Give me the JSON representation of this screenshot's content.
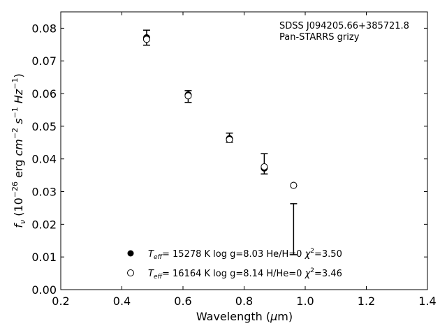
{
  "chart_data": {
    "type": "scatter",
    "title": "",
    "xlabel": "Wavelength (μm)",
    "ylabel": "f_ν (10^-26 erg cm^-2 s^-1 Hz^-1)",
    "xlim": [
      0.2,
      1.4
    ],
    "ylim": [
      0.0,
      0.085
    ],
    "x_ticks": [
      "0.2",
      "0.4",
      "0.6",
      "0.8",
      "1.0",
      "1.2",
      "1.4"
    ],
    "y_ticks": [
      "0.00",
      "0.01",
      "0.02",
      "0.03",
      "0.04",
      "0.05",
      "0.06",
      "0.07",
      "0.08"
    ],
    "grid": false,
    "annotation": {
      "line1": "SDSS J094205.66+385721.8",
      "line2": "Pan-STARRS grizy"
    },
    "observed": {
      "x": [
        0.481,
        0.617,
        0.752,
        0.866,
        0.962
      ],
      "y": [
        0.0771,
        0.0591,
        0.0465,
        0.0385,
        0.0185
      ],
      "yerr": [
        0.0023,
        0.0018,
        0.0014,
        0.0031,
        0.0078
      ]
    },
    "series": [
      {
        "name": "T_eff= 15278 K  log g=8.03  He/H=0  χ²=3.50",
        "marker": "filled-circle",
        "x": [
          0.481,
          0.617,
          0.752,
          0.866,
          0.962
        ],
        "y": [
          0.0771,
          0.0596,
          0.0462,
          0.0372,
          0.0319
        ]
      },
      {
        "name": "T_eff= 16164 K  log g=8.14  H/He=0  χ²=3.46",
        "marker": "open-circle",
        "x": [
          0.481,
          0.617,
          0.752,
          0.866,
          0.962
        ],
        "y": [
          0.0766,
          0.0593,
          0.0459,
          0.0376,
          0.0319
        ]
      }
    ],
    "legend_position": "lower-center"
  }
}
